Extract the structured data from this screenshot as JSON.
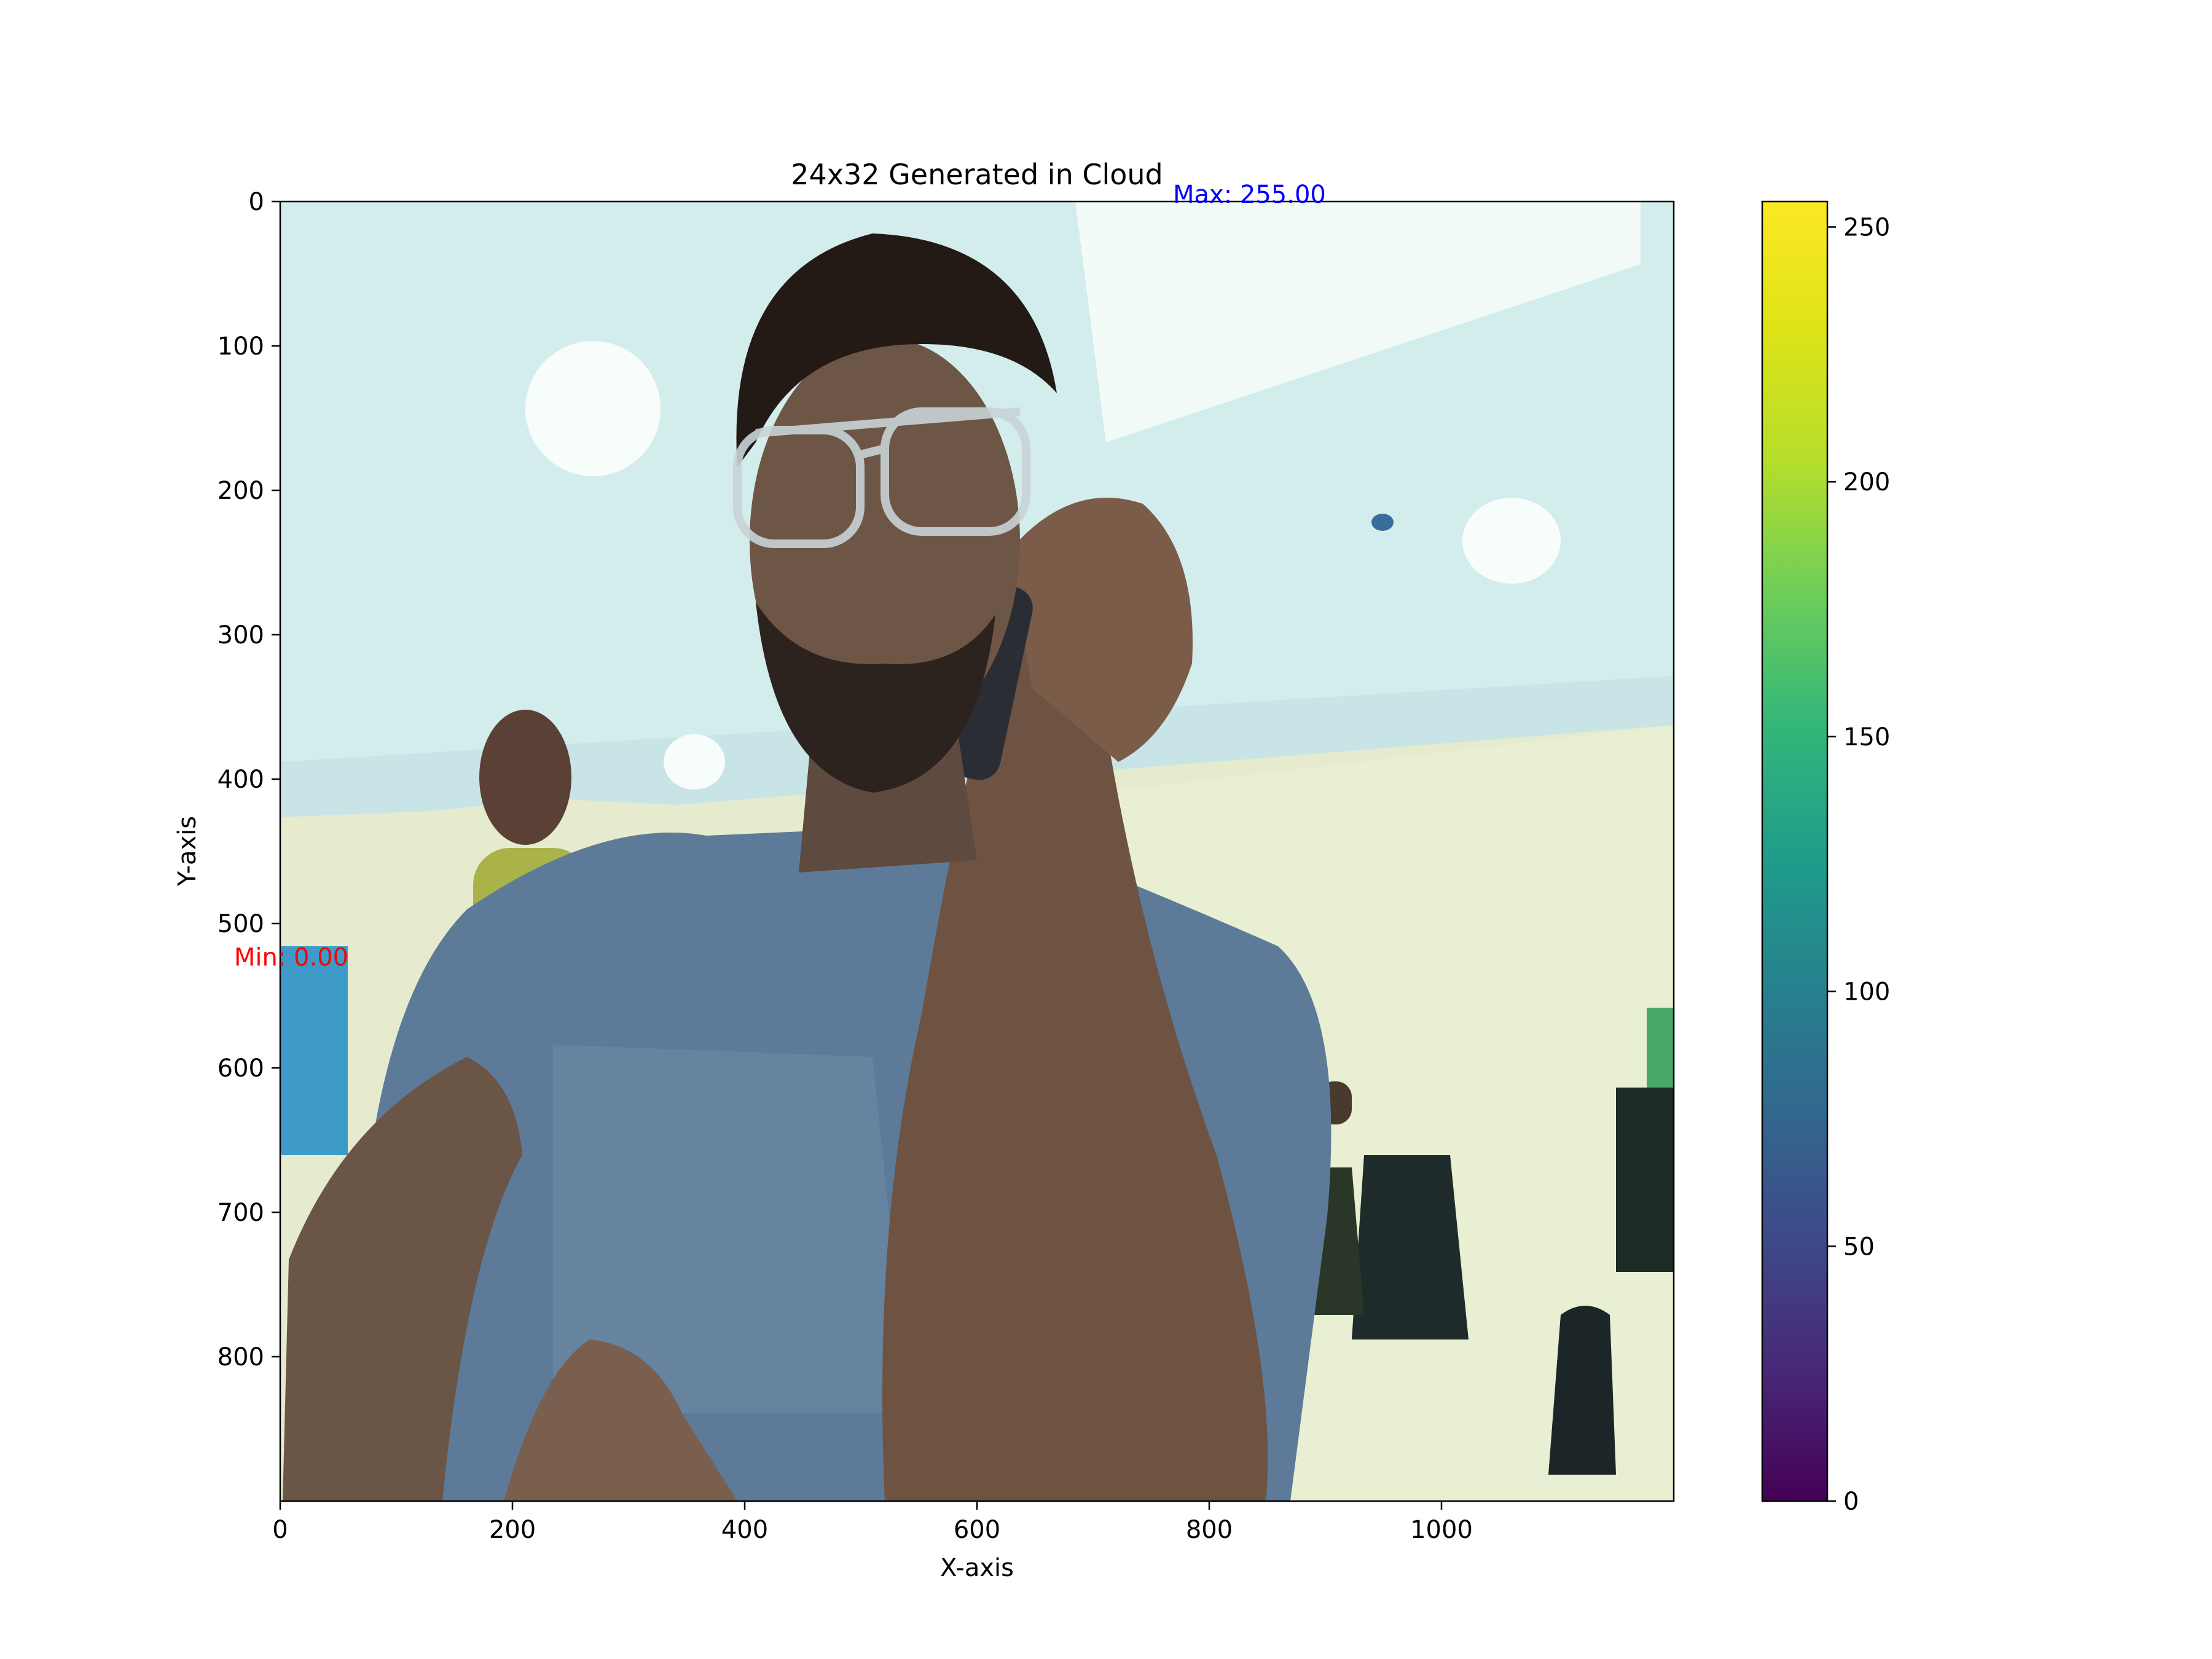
{
  "chart_data": {
    "type": "heatmap",
    "title": "24x32 Generated in Cloud",
    "xlabel": "X-axis",
    "ylabel": "Y-axis",
    "x_ticks": [
      0,
      200,
      400,
      600,
      800,
      1000
    ],
    "y_ticks": [
      0,
      100,
      200,
      300,
      400,
      500,
      600,
      700,
      800
    ],
    "xlim": [
      0,
      1200
    ],
    "ylim": [
      900,
      0
    ],
    "image_content": "photo of a bearded man wearing glasses and a blue t-shirt talking on a mobile phone in an office, a blurred person walking in the background",
    "annotations": {
      "max": {
        "text": "Max: 255.00",
        "x": 700,
        "y": 0,
        "color": "#0000ff"
      },
      "min": {
        "text": "Min: 0.00",
        "x": 0,
        "y": 518,
        "color": "#ff0000"
      }
    },
    "colorbar": {
      "colormap": "viridis",
      "range": [
        0,
        255
      ],
      "ticks": [
        0,
        50,
        100,
        150,
        200,
        250
      ]
    }
  }
}
